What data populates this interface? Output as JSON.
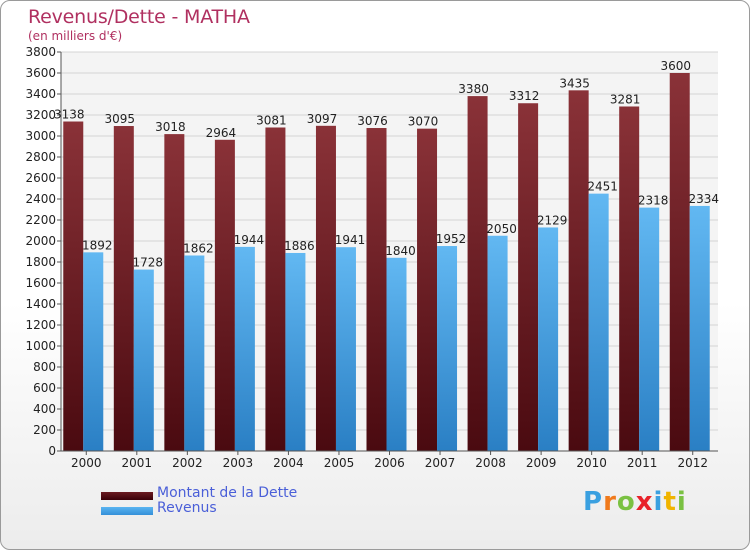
{
  "title": "Revenus/Dette - MATHA",
  "subtitle": "(en milliers d'€)",
  "logo": {
    "text": "Proxiti",
    "colors": [
      "#3aa0e0",
      "#f07a1c",
      "#7ac142",
      "#e8222a",
      "#3aa0e0",
      "#f0b400",
      "#7ac142"
    ]
  },
  "colors": {
    "dette": "#7a2a30",
    "revenus": "#4aa3e6",
    "title": "#b03060",
    "legend_text": "#4a5fd8"
  },
  "chart_data": {
    "type": "bar",
    "categories": [
      "2000",
      "2001",
      "2002",
      "2003",
      "2004",
      "2005",
      "2006",
      "2007",
      "2008",
      "2009",
      "2010",
      "2011",
      "2012"
    ],
    "series": [
      {
        "name": "Montant de la Dette",
        "color": "#7a2a30",
        "values": [
          3138,
          3095,
          3018,
          2964,
          3081,
          3097,
          3076,
          3070,
          3380,
          3312,
          3435,
          3281,
          3600
        ]
      },
      {
        "name": "Revenus",
        "color": "#4aa3e6",
        "values": [
          1892,
          1728,
          1862,
          1944,
          1886,
          1941,
          1840,
          1952,
          2050,
          2129,
          2451,
          2318,
          2334
        ]
      }
    ],
    "ylim": [
      0,
      3800
    ],
    "yticks": [
      0,
      200,
      400,
      600,
      800,
      1000,
      1200,
      1400,
      1600,
      1800,
      2000,
      2200,
      2400,
      2600,
      2800,
      3000,
      3200,
      3400,
      3600,
      3800
    ],
    "grid": true,
    "legend_position": "bottom-left"
  }
}
